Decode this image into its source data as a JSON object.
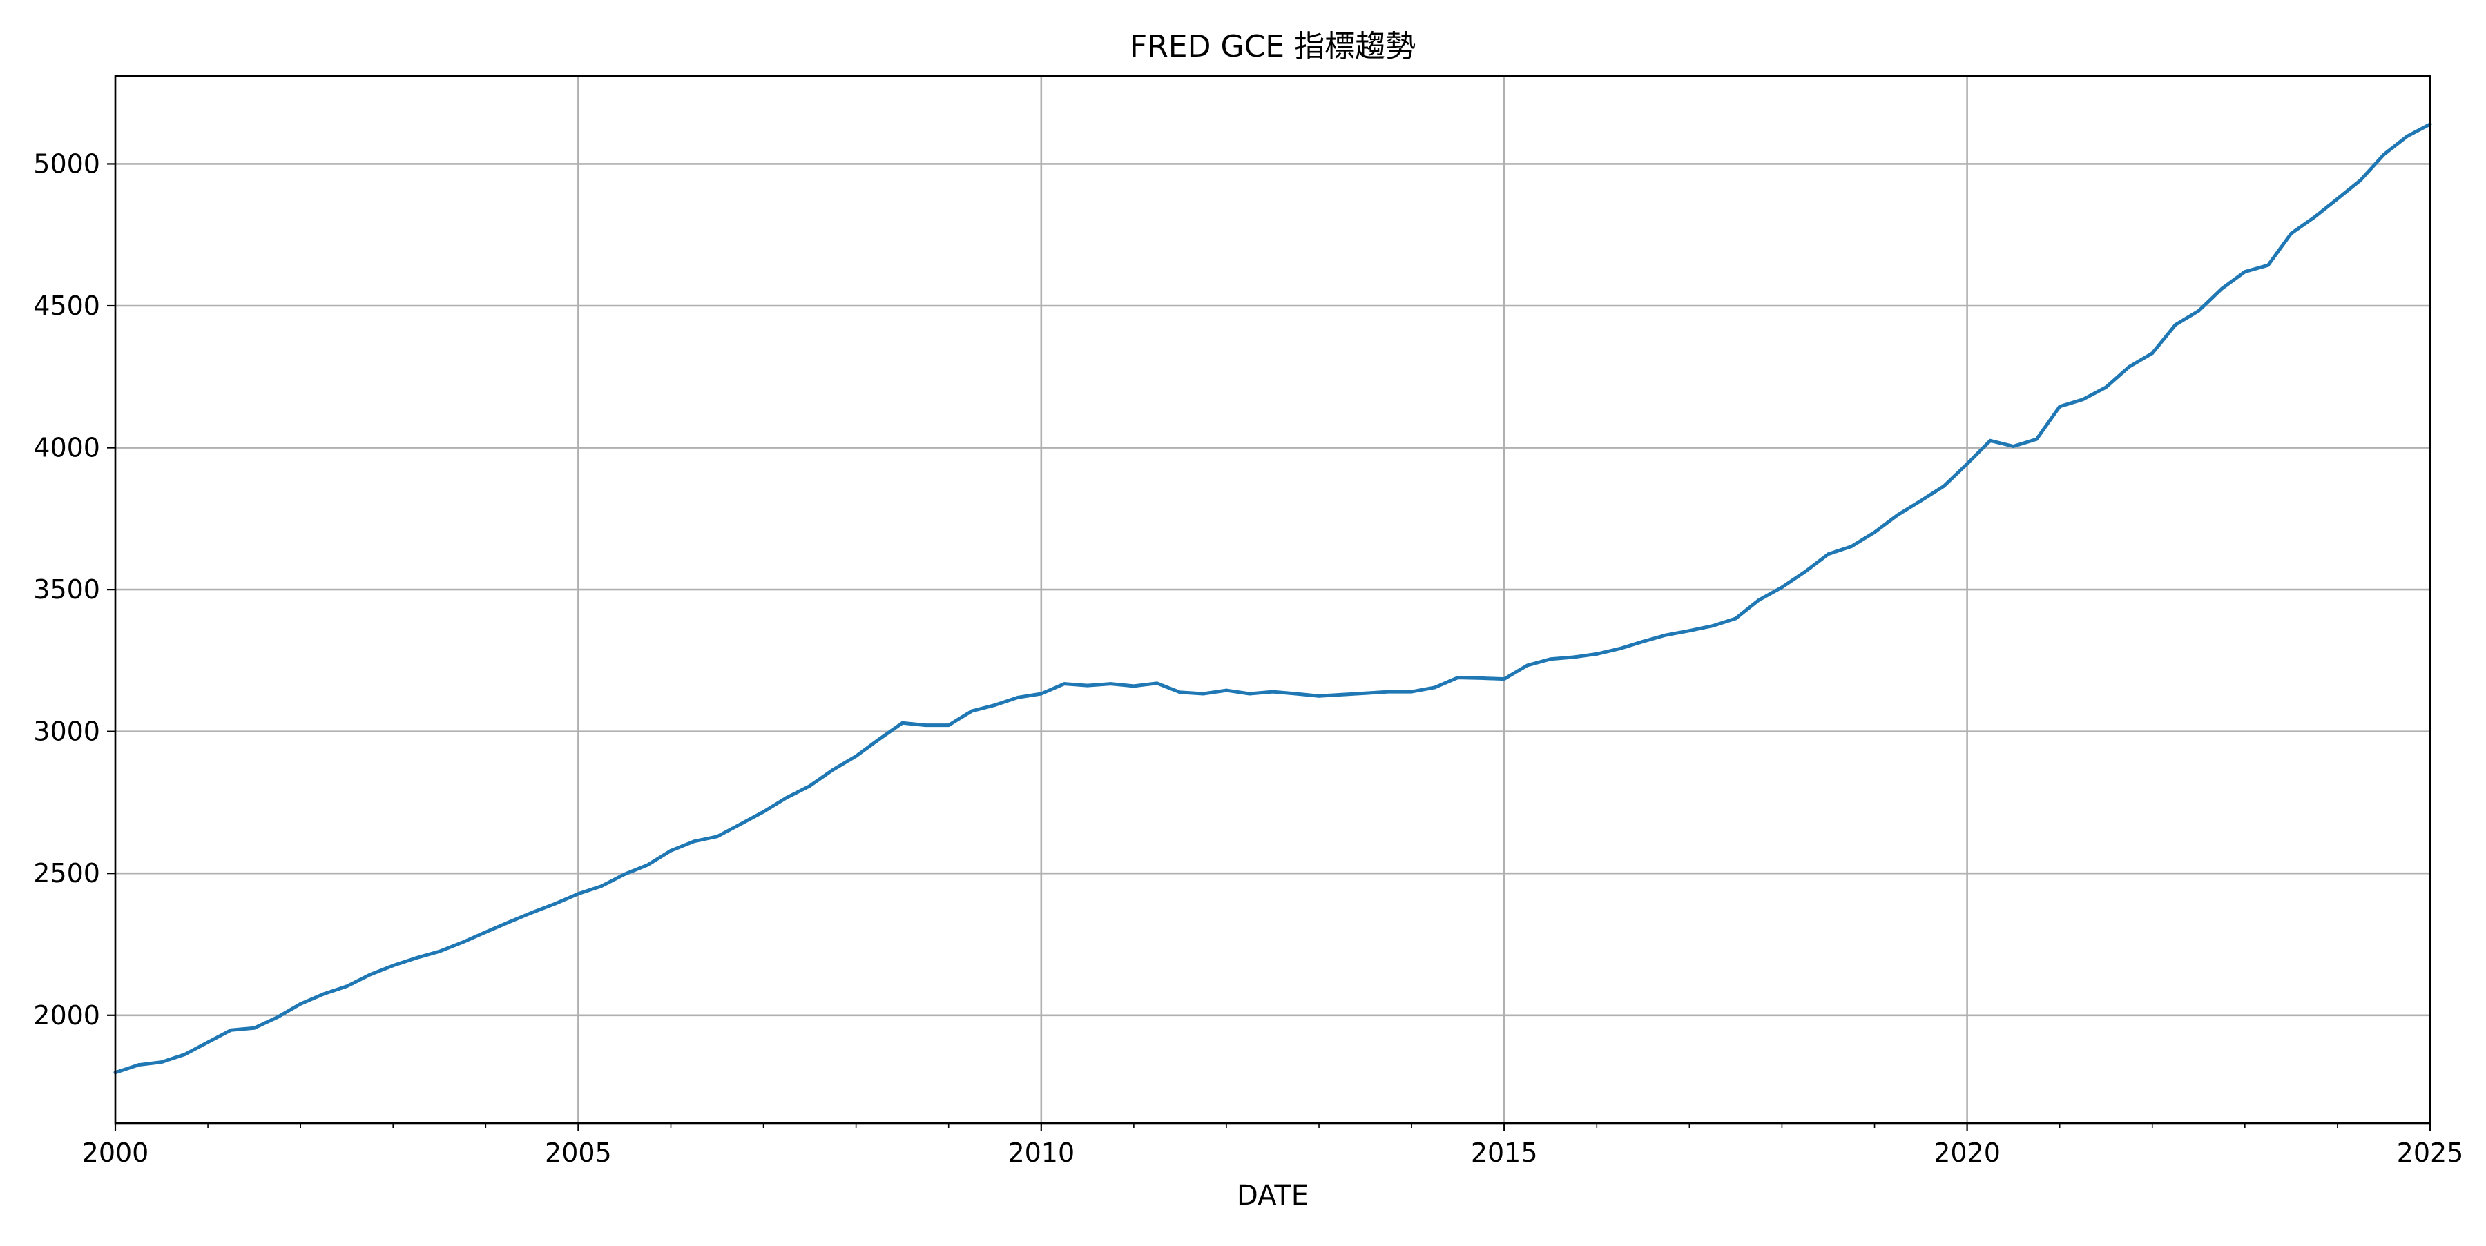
{
  "chart_data": {
    "type": "line",
    "title": "FRED GCE 指標趨勢",
    "xlabel": "DATE",
    "ylabel": "",
    "xlim": [
      2000.0,
      2025.0
    ],
    "ylim": [
      1620,
      5310
    ],
    "x_ticks": [
      2000,
      2005,
      2010,
      2015,
      2020,
      2025
    ],
    "x_tick_labels": [
      "2000",
      "2005",
      "2010",
      "2015",
      "2020",
      "2025"
    ],
    "x_minor_ticks": [
      2001,
      2002,
      2003,
      2004,
      2006,
      2007,
      2008,
      2009,
      2011,
      2012,
      2013,
      2014,
      2016,
      2017,
      2018,
      2019,
      2021,
      2022,
      2023,
      2024
    ],
    "y_ticks": [
      2000,
      2500,
      3000,
      3500,
      4000,
      4500,
      5000
    ],
    "y_tick_labels": [
      "2000",
      "2500",
      "3000",
      "3500",
      "4000",
      "4500",
      "5000"
    ],
    "grid": true,
    "colors": {
      "series": "#1f77b4",
      "grid": "#b0b0b0",
      "axes": "#000000"
    },
    "series": [
      {
        "x": [
          "2000-01-01",
          "2000-04-01",
          "2000-07-01",
          "2000-10-01",
          "2001-01-01",
          "2001-04-01",
          "2001-07-01",
          "2001-10-01",
          "2002-01-01",
          "2002-04-01",
          "2002-07-01",
          "2002-10-01",
          "2003-01-01",
          "2003-04-01",
          "2003-07-01",
          "2003-10-01",
          "2004-01-01",
          "2004-04-01",
          "2004-07-01",
          "2004-10-01",
          "2005-01-01",
          "2005-04-01",
          "2005-07-01",
          "2005-10-01",
          "2006-01-01",
          "2006-04-01",
          "2006-07-01",
          "2006-10-01",
          "2007-01-01",
          "2007-04-01",
          "2007-07-01",
          "2007-10-01",
          "2008-01-01",
          "2008-04-01",
          "2008-07-01",
          "2008-10-01",
          "2009-01-01",
          "2009-04-01",
          "2009-07-01",
          "2009-10-01",
          "2010-01-01",
          "2010-04-01",
          "2010-07-01",
          "2010-10-01",
          "2011-01-01",
          "2011-04-01",
          "2011-07-01",
          "2011-10-01",
          "2012-01-01",
          "2012-04-01",
          "2012-07-01",
          "2012-10-01",
          "2013-01-01",
          "2013-04-01",
          "2013-07-01",
          "2013-10-01",
          "2014-01-01",
          "2014-04-01",
          "2014-07-01",
          "2014-10-01",
          "2015-01-01",
          "2015-04-01",
          "2015-07-01",
          "2015-10-01",
          "2016-01-01",
          "2016-04-01",
          "2016-07-01",
          "2016-10-01",
          "2017-01-01",
          "2017-04-01",
          "2017-07-01",
          "2017-10-01",
          "2018-01-01",
          "2018-04-01",
          "2018-07-01",
          "2018-10-01",
          "2019-01-01",
          "2019-04-01",
          "2019-07-01",
          "2019-10-01",
          "2020-01-01",
          "2020-04-01",
          "2020-07-01",
          "2020-10-01",
          "2021-01-01",
          "2021-04-01",
          "2021-07-01",
          "2021-10-01",
          "2022-01-01",
          "2022-04-01",
          "2022-07-01",
          "2022-10-01",
          "2023-01-01",
          "2023-04-01",
          "2023-07-01",
          "2023-10-01",
          "2024-01-01",
          "2024-04-01",
          "2024-07-01",
          "2024-10-01",
          "2025-01-01"
        ],
        "y": [
          1798,
          1825,
          1835,
          1862,
          1905,
          1948,
          1955,
          1993,
          2040,
          2075,
          2102,
          2143,
          2175,
          2202,
          2225,
          2257,
          2293,
          2328,
          2362,
          2393,
          2428,
          2455,
          2497,
          2530,
          2580,
          2613,
          2630,
          2673,
          2717,
          2767,
          2808,
          2865,
          2913,
          2973,
          3030,
          3022,
          3022,
          3072,
          3093,
          3120,
          3133,
          3168,
          3162,
          3168,
          3160,
          3170,
          3138,
          3133,
          3145,
          3133,
          3140,
          3133,
          3125,
          3130,
          3135,
          3140,
          3140,
          3155,
          3190,
          3188,
          3185,
          3233,
          3255,
          3262,
          3273,
          3292,
          3317,
          3340,
          3355,
          3372,
          3398,
          3463,
          3508,
          3563,
          3625,
          3652,
          3702,
          3763,
          3813,
          3865,
          3943,
          4025,
          4005,
          4030,
          4145,
          4170,
          4213,
          4285,
          4333,
          4433,
          4482,
          4560,
          4620,
          4643,
          4755,
          4812,
          4877,
          4943,
          5033,
          5097,
          5140
        ]
      }
    ]
  }
}
